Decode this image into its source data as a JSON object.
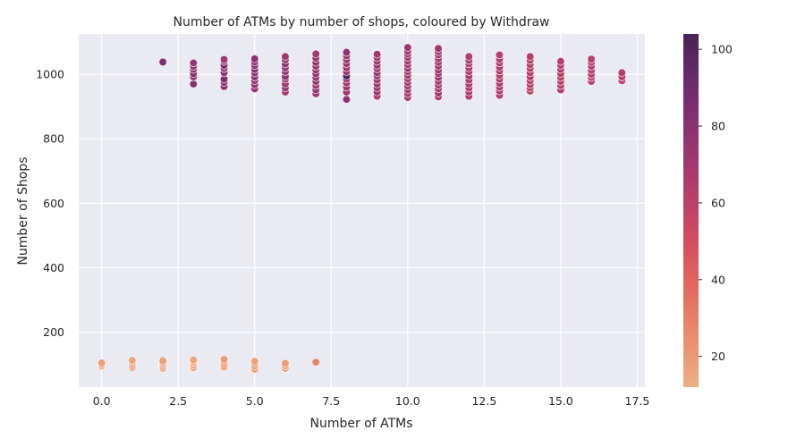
{
  "chart_data": {
    "type": "scatter",
    "title": "Number of ATMs by number of shops, coloured by Withdraw",
    "xlabel": "Number of ATMs",
    "ylabel": "Number of Shops",
    "xlim": [
      -0.75,
      17.75
    ],
    "ylim": [
      30,
      1125
    ],
    "xticks": [
      0,
      2.5,
      5,
      7.5,
      10,
      12.5,
      15,
      17.5
    ],
    "xtick_labels": [
      "0.0",
      "2.5",
      "5.0",
      "7.5",
      "10.0",
      "12.5",
      "15.0",
      "17.5"
    ],
    "yticks": [
      200,
      400,
      600,
      800,
      1000
    ],
    "ytick_labels": [
      "200",
      "400",
      "600",
      "800",
      "1000"
    ],
    "grid": true,
    "colorbar": {
      "label": "",
      "range": [
        12,
        104
      ],
      "ticks": [
        20,
        40,
        60,
        80,
        100
      ],
      "tick_labels": [
        "20",
        "40",
        "60",
        "80",
        "100"
      ],
      "palette": "flare",
      "colors": [
        "#edb081",
        "#e98d6b",
        "#e3685c",
        "#d14a61",
        "#b13c6c",
        "#8f3371",
        "#6c2b6d",
        "#4a2157"
      ]
    },
    "points": [
      {
        "x": 0,
        "y": 95,
        "c": 20
      },
      {
        "x": 0,
        "y": 100,
        "c": 19
      },
      {
        "x": 0,
        "y": 105,
        "c": 18
      },
      {
        "x": 1,
        "y": 90,
        "c": 17
      },
      {
        "x": 1,
        "y": 96,
        "c": 22
      },
      {
        "x": 1,
        "y": 102,
        "c": 21
      },
      {
        "x": 1,
        "y": 108,
        "c": 18
      },
      {
        "x": 1,
        "y": 113,
        "c": 16
      },
      {
        "x": 2,
        "y": 1038,
        "c": 84
      },
      {
        "x": 2,
        "y": 88,
        "c": 17
      },
      {
        "x": 2,
        "y": 94,
        "c": 19
      },
      {
        "x": 2,
        "y": 100,
        "c": 20
      },
      {
        "x": 2,
        "y": 106,
        "c": 16
      },
      {
        "x": 2,
        "y": 112,
        "c": 18
      },
      {
        "x": 3,
        "y": 970,
        "c": 80
      },
      {
        "x": 3,
        "y": 992,
        "c": 78
      },
      {
        "x": 3,
        "y": 1002,
        "c": 82
      },
      {
        "x": 3,
        "y": 1015,
        "c": 76
      },
      {
        "x": 3,
        "y": 1025,
        "c": 79
      },
      {
        "x": 3,
        "y": 1035,
        "c": 75
      },
      {
        "x": 3,
        "y": 90,
        "c": 18
      },
      {
        "x": 3,
        "y": 98,
        "c": 21
      },
      {
        "x": 3,
        "y": 104,
        "c": 19
      },
      {
        "x": 3,
        "y": 109,
        "c": 23
      },
      {
        "x": 3,
        "y": 114,
        "c": 17
      },
      {
        "x": 4,
        "y": 962,
        "c": 80
      },
      {
        "x": 4,
        "y": 975,
        "c": 76
      },
      {
        "x": 4,
        "y": 985,
        "c": 84
      },
      {
        "x": 4,
        "y": 1005,
        "c": 78
      },
      {
        "x": 4,
        "y": 1018,
        "c": 74
      },
      {
        "x": 4,
        "y": 1028,
        "c": 86
      },
      {
        "x": 4,
        "y": 1040,
        "c": 77
      },
      {
        "x": 4,
        "y": 1046,
        "c": 72
      },
      {
        "x": 4,
        "y": 92,
        "c": 19
      },
      {
        "x": 4,
        "y": 100,
        "c": 22
      },
      {
        "x": 4,
        "y": 108,
        "c": 18
      },
      {
        "x": 4,
        "y": 116,
        "c": 20
      },
      {
        "x": 5,
        "y": 955,
        "c": 75
      },
      {
        "x": 5,
        "y": 968,
        "c": 78
      },
      {
        "x": 5,
        "y": 980,
        "c": 72
      },
      {
        "x": 5,
        "y": 992,
        "c": 80
      },
      {
        "x": 5,
        "y": 1004,
        "c": 76
      },
      {
        "x": 5,
        "y": 1015,
        "c": 82
      },
      {
        "x": 5,
        "y": 1027,
        "c": 77
      },
      {
        "x": 5,
        "y": 1038,
        "c": 74
      },
      {
        "x": 5,
        "y": 1048,
        "c": 79
      },
      {
        "x": 5,
        "y": 85,
        "c": 17
      },
      {
        "x": 5,
        "y": 95,
        "c": 19
      },
      {
        "x": 5,
        "y": 103,
        "c": 22
      },
      {
        "x": 5,
        "y": 110,
        "c": 18
      },
      {
        "x": 6,
        "y": 945,
        "c": 70
      },
      {
        "x": 6,
        "y": 958,
        "c": 76
      },
      {
        "x": 6,
        "y": 970,
        "c": 72
      },
      {
        "x": 6,
        "y": 985,
        "c": 74
      },
      {
        "x": 6,
        "y": 993,
        "c": 78
      },
      {
        "x": 6,
        "y": 1008,
        "c": 75
      },
      {
        "x": 6,
        "y": 1020,
        "c": 73
      },
      {
        "x": 6,
        "y": 1032,
        "c": 80
      },
      {
        "x": 6,
        "y": 1045,
        "c": 77
      },
      {
        "x": 6,
        "y": 1055,
        "c": 71
      },
      {
        "x": 6,
        "y": 88,
        "c": 18
      },
      {
        "x": 6,
        "y": 96,
        "c": 17
      },
      {
        "x": 6,
        "y": 104,
        "c": 19
      },
      {
        "x": 7,
        "y": 940,
        "c": 72
      },
      {
        "x": 7,
        "y": 952,
        "c": 76
      },
      {
        "x": 7,
        "y": 965,
        "c": 70
      },
      {
        "x": 7,
        "y": 978,
        "c": 75
      },
      {
        "x": 7,
        "y": 990,
        "c": 73
      },
      {
        "x": 7,
        "y": 1002,
        "c": 78
      },
      {
        "x": 7,
        "y": 1013,
        "c": 74
      },
      {
        "x": 7,
        "y": 1025,
        "c": 71
      },
      {
        "x": 7,
        "y": 1037,
        "c": 76
      },
      {
        "x": 7,
        "y": 1050,
        "c": 73
      },
      {
        "x": 7,
        "y": 1063,
        "c": 70
      },
      {
        "x": 7,
        "y": 107,
        "c": 28
      },
      {
        "x": 8,
        "y": 922,
        "c": 78
      },
      {
        "x": 8,
        "y": 945,
        "c": 72
      },
      {
        "x": 8,
        "y": 960,
        "c": 75
      },
      {
        "x": 8,
        "y": 973,
        "c": 70
      },
      {
        "x": 8,
        "y": 985,
        "c": 74
      },
      {
        "x": 8,
        "y": 995,
        "c": 104
      },
      {
        "x": 8,
        "y": 1008,
        "c": 73
      },
      {
        "x": 8,
        "y": 1020,
        "c": 71
      },
      {
        "x": 8,
        "y": 1033,
        "c": 76
      },
      {
        "x": 8,
        "y": 1045,
        "c": 72
      },
      {
        "x": 8,
        "y": 1057,
        "c": 75
      },
      {
        "x": 8,
        "y": 1068,
        "c": 78
      },
      {
        "x": 9,
        "y": 932,
        "c": 68
      },
      {
        "x": 9,
        "y": 945,
        "c": 72
      },
      {
        "x": 9,
        "y": 958,
        "c": 70
      },
      {
        "x": 9,
        "y": 970,
        "c": 74
      },
      {
        "x": 9,
        "y": 982,
        "c": 69
      },
      {
        "x": 9,
        "y": 995,
        "c": 71
      },
      {
        "x": 9,
        "y": 1005,
        "c": 78
      },
      {
        "x": 9,
        "y": 1017,
        "c": 70
      },
      {
        "x": 9,
        "y": 1028,
        "c": 73
      },
      {
        "x": 9,
        "y": 1040,
        "c": 69
      },
      {
        "x": 9,
        "y": 1052,
        "c": 72
      },
      {
        "x": 9,
        "y": 1062,
        "c": 70
      },
      {
        "x": 10,
        "y": 928,
        "c": 68
      },
      {
        "x": 10,
        "y": 940,
        "c": 66
      },
      {
        "x": 10,
        "y": 952,
        "c": 72
      },
      {
        "x": 10,
        "y": 963,
        "c": 69
      },
      {
        "x": 10,
        "y": 975,
        "c": 70
      },
      {
        "x": 10,
        "y": 986,
        "c": 67
      },
      {
        "x": 10,
        "y": 997,
        "c": 71
      },
      {
        "x": 10,
        "y": 1008,
        "c": 68
      },
      {
        "x": 10,
        "y": 1018,
        "c": 74
      },
      {
        "x": 10,
        "y": 1030,
        "c": 69
      },
      {
        "x": 10,
        "y": 1041,
        "c": 70
      },
      {
        "x": 10,
        "y": 1052,
        "c": 67
      },
      {
        "x": 10,
        "y": 1063,
        "c": 72
      },
      {
        "x": 10,
        "y": 1072,
        "c": 70
      },
      {
        "x": 10,
        "y": 1083,
        "c": 73
      },
      {
        "x": 11,
        "y": 930,
        "c": 66
      },
      {
        "x": 11,
        "y": 942,
        "c": 70
      },
      {
        "x": 11,
        "y": 955,
        "c": 67
      },
      {
        "x": 11,
        "y": 967,
        "c": 72
      },
      {
        "x": 11,
        "y": 978,
        "c": 68
      },
      {
        "x": 11,
        "y": 990,
        "c": 71
      },
      {
        "x": 11,
        "y": 1002,
        "c": 69
      },
      {
        "x": 11,
        "y": 1013,
        "c": 73
      },
      {
        "x": 11,
        "y": 1025,
        "c": 68
      },
      {
        "x": 11,
        "y": 1037,
        "c": 70
      },
      {
        "x": 11,
        "y": 1048,
        "c": 67
      },
      {
        "x": 11,
        "y": 1060,
        "c": 71
      },
      {
        "x": 11,
        "y": 1070,
        "c": 69
      },
      {
        "x": 11,
        "y": 1080,
        "c": 72
      },
      {
        "x": 12,
        "y": 932,
        "c": 64
      },
      {
        "x": 12,
        "y": 945,
        "c": 66
      },
      {
        "x": 12,
        "y": 957,
        "c": 63
      },
      {
        "x": 12,
        "y": 970,
        "c": 67
      },
      {
        "x": 12,
        "y": 982,
        "c": 65
      },
      {
        "x": 12,
        "y": 995,
        "c": 68
      },
      {
        "x": 12,
        "y": 1008,
        "c": 64
      },
      {
        "x": 12,
        "y": 1020,
        "c": 66
      },
      {
        "x": 12,
        "y": 1032,
        "c": 63
      },
      {
        "x": 12,
        "y": 1043,
        "c": 67
      },
      {
        "x": 12,
        "y": 1055,
        "c": 65
      },
      {
        "x": 13,
        "y": 935,
        "c": 64
      },
      {
        "x": 13,
        "y": 948,
        "c": 62
      },
      {
        "x": 13,
        "y": 960,
        "c": 66
      },
      {
        "x": 13,
        "y": 972,
        "c": 63
      },
      {
        "x": 13,
        "y": 985,
        "c": 65
      },
      {
        "x": 13,
        "y": 997,
        "c": 62
      },
      {
        "x": 13,
        "y": 1010,
        "c": 64
      },
      {
        "x": 13,
        "y": 1022,
        "c": 66
      },
      {
        "x": 13,
        "y": 1035,
        "c": 63
      },
      {
        "x": 13,
        "y": 1047,
        "c": 65
      },
      {
        "x": 13,
        "y": 1060,
        "c": 62
      },
      {
        "x": 14,
        "y": 948,
        "c": 62
      },
      {
        "x": 14,
        "y": 958,
        "c": 60
      },
      {
        "x": 14,
        "y": 968,
        "c": 63
      },
      {
        "x": 14,
        "y": 980,
        "c": 61
      },
      {
        "x": 14,
        "y": 992,
        "c": 64
      },
      {
        "x": 14,
        "y": 1005,
        "c": 62
      },
      {
        "x": 14,
        "y": 1018,
        "c": 60
      },
      {
        "x": 14,
        "y": 1030,
        "c": 63
      },
      {
        "x": 14,
        "y": 1043,
        "c": 61
      },
      {
        "x": 14,
        "y": 1055,
        "c": 62
      },
      {
        "x": 15,
        "y": 952,
        "c": 64
      },
      {
        "x": 15,
        "y": 965,
        "c": 61
      },
      {
        "x": 15,
        "y": 978,
        "c": 63
      },
      {
        "x": 15,
        "y": 990,
        "c": 60
      },
      {
        "x": 15,
        "y": 1002,
        "c": 62
      },
      {
        "x": 15,
        "y": 1015,
        "c": 65
      },
      {
        "x": 15,
        "y": 1028,
        "c": 61
      },
      {
        "x": 15,
        "y": 1040,
        "c": 63
      },
      {
        "x": 16,
        "y": 978,
        "c": 62
      },
      {
        "x": 16,
        "y": 990,
        "c": 60
      },
      {
        "x": 16,
        "y": 1000,
        "c": 64
      },
      {
        "x": 16,
        "y": 1012,
        "c": 61
      },
      {
        "x": 16,
        "y": 1025,
        "c": 63
      },
      {
        "x": 16,
        "y": 1037,
        "c": 60
      },
      {
        "x": 16,
        "y": 1047,
        "c": 62
      },
      {
        "x": 17,
        "y": 980,
        "c": 60
      },
      {
        "x": 17,
        "y": 992,
        "c": 62
      },
      {
        "x": 17,
        "y": 1005,
        "c": 64
      }
    ]
  }
}
